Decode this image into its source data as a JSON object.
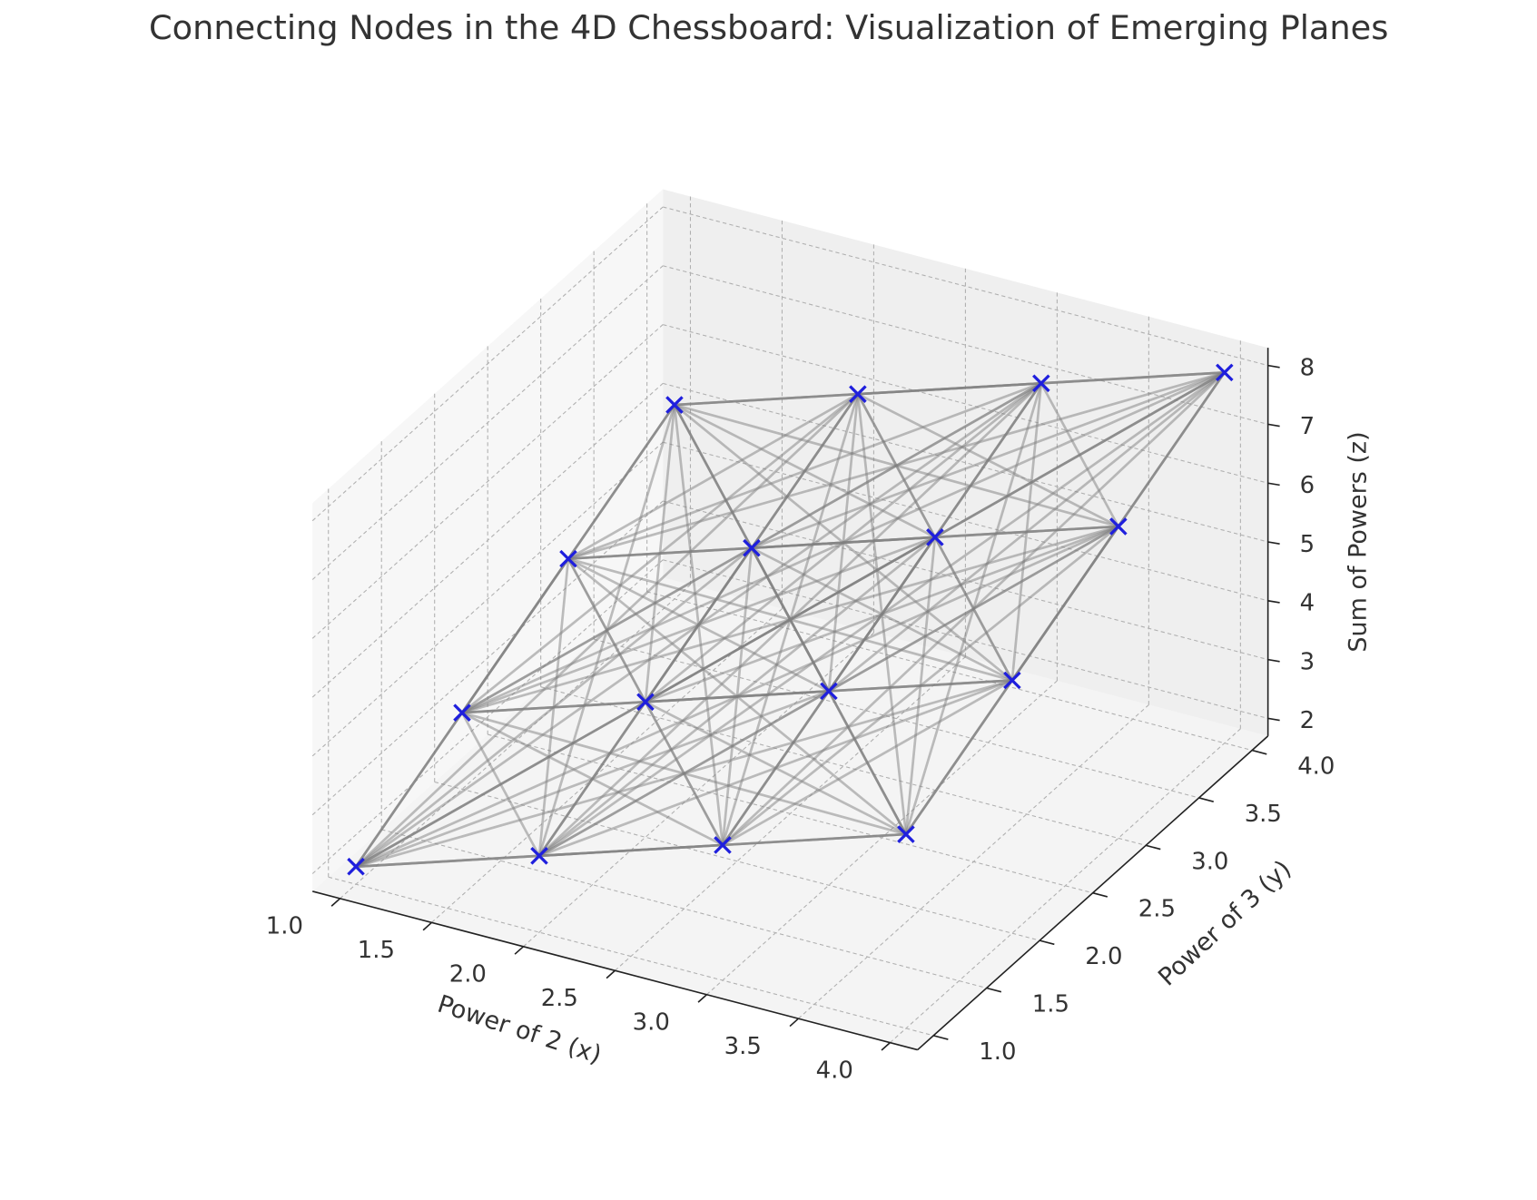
{
  "chart_data": {
    "type": "scatter3d",
    "title": "Connecting Nodes in the 4D Chessboard: Visualization of Emerging Planes",
    "xlabel": "Power of 2 (x)",
    "ylabel": "Power of 3 (y)",
    "zlabel": "Sum of Powers (z)",
    "x": [
      1,
      1,
      1,
      1,
      2,
      2,
      2,
      2,
      3,
      3,
      3,
      3,
      4,
      4,
      4,
      4
    ],
    "y": [
      1,
      2,
      3,
      4,
      1,
      2,
      3,
      4,
      1,
      2,
      3,
      4,
      1,
      2,
      3,
      4
    ],
    "z": [
      2,
      3,
      4,
      5,
      3,
      4,
      5,
      6,
      4,
      5,
      6,
      7,
      5,
      6,
      7,
      8
    ],
    "marker_color": "#1f1fdd",
    "edge_color": "#808080",
    "xlim": [
      0.85,
      4.15
    ],
    "ylim": [
      0.85,
      4.15
    ],
    "zlim": [
      1.7,
      8.3
    ],
    "xticks": [
      {
        "value": 1,
        "label": "1.0"
      },
      {
        "value": 1.5,
        "label": "1.5"
      },
      {
        "value": 2,
        "label": "2.0"
      },
      {
        "value": 2.5,
        "label": "2.5"
      },
      {
        "value": 3,
        "label": "3.0"
      },
      {
        "value": 3.5,
        "label": "3.5"
      },
      {
        "value": 4,
        "label": "4.0"
      }
    ],
    "yticks": [
      {
        "value": 1,
        "label": "1.0"
      },
      {
        "value": 1.5,
        "label": "1.5"
      },
      {
        "value": 2,
        "label": "2.0"
      },
      {
        "value": 2.5,
        "label": "2.5"
      },
      {
        "value": 3,
        "label": "3.0"
      },
      {
        "value": 3.5,
        "label": "3.5"
      },
      {
        "value": 4,
        "label": "4.0"
      }
    ],
    "zticks": [
      2,
      3,
      4,
      5,
      6,
      7,
      8
    ],
    "grid": true
  }
}
